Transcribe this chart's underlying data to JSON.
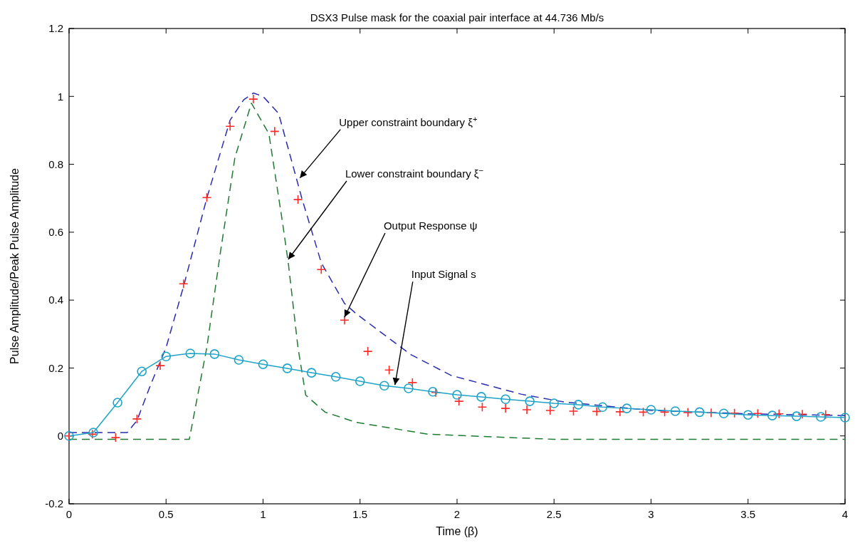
{
  "chart_data": {
    "type": "line",
    "title": "DSX3 Pulse mask for the coaxial pair interface at 44.736 Mb/s",
    "xlabel": "Time (β)",
    "ylabel": "Pulse Amplitude/Peak Pulse Amplitude",
    "xlim": [
      0,
      4
    ],
    "xticks": [
      0,
      0.5,
      1,
      1.5,
      2,
      2.5,
      3,
      3.5,
      4
    ],
    "ylim": [
      -0.2,
      1.2
    ],
    "yticks": [
      -0.2,
      0,
      0.2,
      0.4,
      0.6,
      0.8,
      1,
      1.2
    ],
    "grid": false,
    "series": [
      {
        "color": "#2a2ab4",
        "line_style": "dashed",
        "marker": "none",
        "x": [
          0,
          0.3,
          0.35,
          0.42,
          0.5,
          0.59,
          0.71,
          0.83,
          0.9,
          0.95,
          1.0,
          1.08,
          1.2,
          1.3,
          1.42,
          1.48,
          1.76,
          1.97,
          2.33,
          2.55,
          3,
          3.5,
          4
        ],
        "values": [
          0.01,
          0.01,
          0.045,
          0.15,
          0.26,
          0.44,
          0.7,
          0.93,
          0.99,
          1.01,
          1.0,
          0.95,
          0.7,
          0.51,
          0.39,
          0.36,
          0.24,
          0.178,
          0.123,
          0.1,
          0.075,
          0.065,
          0.06
        ]
      },
      {
        "color": "#1f7a32",
        "line_style": "dashed",
        "marker": "none",
        "x": [
          0,
          0.62,
          0.71,
          0.78,
          0.855,
          0.94,
          1.03,
          1.1,
          1.13,
          1.18,
          1.22,
          1.32,
          1.48,
          1.85,
          2.5,
          4
        ],
        "values": [
          -0.01,
          -0.01,
          0.26,
          0.54,
          0.82,
          0.98,
          0.89,
          0.63,
          0.51,
          0.26,
          0.12,
          0.07,
          0.04,
          0.005,
          -0.01,
          -0.01
        ]
      },
      {
        "type": "scatter",
        "color": "#ff2a2a",
        "marker": "cross",
        "x": [
          0,
          0.12,
          0.24,
          0.35,
          0.47,
          0.59,
          0.71,
          0.83,
          0.95,
          1.06,
          1.18,
          1.3,
          1.42,
          1.54,
          1.65,
          1.77,
          1.89,
          2.01,
          2.13,
          2.25,
          2.36,
          2.48,
          2.6,
          2.72,
          2.84,
          2.96,
          3.07,
          3.19,
          3.31,
          3.43,
          3.55,
          3.66,
          3.78,
          3.9
        ],
        "values": [
          0,
          0.005,
          -0.005,
          0.05,
          0.207,
          0.448,
          0.702,
          0.912,
          0.992,
          0.897,
          0.696,
          0.49,
          0.341,
          0.249,
          0.194,
          0.157,
          0.128,
          0.102,
          0.085,
          0.081,
          0.077,
          0.075,
          0.073,
          0.072,
          0.071,
          0.07,
          0.07,
          0.069,
          0.068,
          0.067,
          0.066,
          0.065,
          0.064,
          0.063
        ]
      },
      {
        "color": "#1ea3c8",
        "line_style": "solid",
        "marker": "circle",
        "x": [
          0,
          0.125,
          0.25,
          0.375,
          0.5,
          0.625,
          0.75,
          0.875,
          1,
          1.125,
          1.25,
          1.375,
          1.5,
          1.625,
          1.75,
          1.875,
          2,
          2.125,
          2.25,
          2.375,
          2.5,
          2.625,
          2.75,
          2.875,
          3,
          3.125,
          3.25,
          3.375,
          3.5,
          3.625,
          3.75,
          3.875,
          4
        ],
        "values": [
          0,
          0.01,
          0.098,
          0.19,
          0.234,
          0.243,
          0.241,
          0.224,
          0.211,
          0.199,
          0.186,
          0.174,
          0.161,
          0.148,
          0.14,
          0.13,
          0.121,
          0.115,
          0.108,
          0.102,
          0.096,
          0.092,
          0.085,
          0.081,
          0.077,
          0.073,
          0.07,
          0.066,
          0.062,
          0.06,
          0.058,
          0.056,
          0.054
        ]
      }
    ],
    "annotations": [
      {
        "text": "Upper constraint boundary ξ$^{+}$",
        "x": 1.19,
        "y": 0.76
      },
      {
        "text": "Lower constraint boundary ξ$^{−}$",
        "x": 1.13,
        "y": 0.52
      },
      {
        "text": "Output Response ψ",
        "x": 1.42,
        "y": 0.35
      },
      {
        "text": "Input Signal s",
        "x": 1.68,
        "y": 0.15
      }
    ]
  }
}
